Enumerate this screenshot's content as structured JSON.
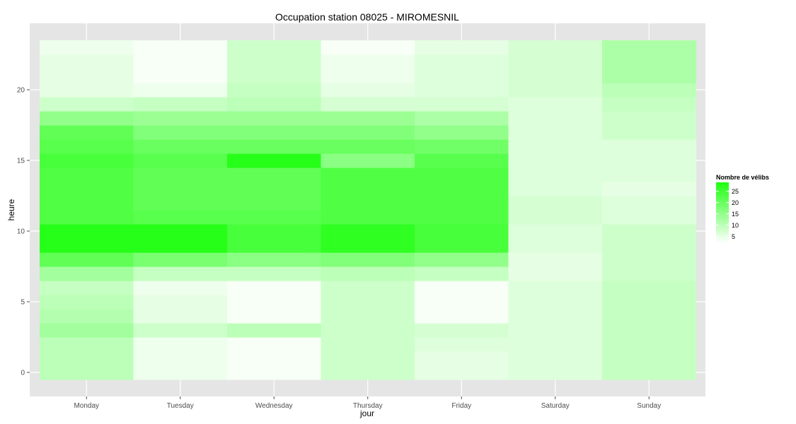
{
  "chart_data": {
    "type": "heatmap",
    "title": "Occupation station 08025 - MIROMESNIL",
    "xlabel": "jour",
    "ylabel": "heure",
    "categories": [
      "Monday",
      "Tuesday",
      "Wednesday",
      "Thursday",
      "Friday",
      "Saturday",
      "Sunday"
    ],
    "hours": [
      0,
      1,
      2,
      3,
      4,
      5,
      6,
      7,
      8,
      9,
      10,
      11,
      12,
      13,
      14,
      15,
      16,
      17,
      18,
      19,
      20,
      21,
      22,
      23
    ],
    "y_ticks": [
      0,
      5,
      10,
      15,
      20
    ],
    "ylim": [
      -0.5,
      23.5
    ],
    "values": [
      [
        10,
        4,
        3,
        8,
        5,
        6,
        9
      ],
      [
        10,
        4,
        3,
        8,
        5,
        6,
        9
      ],
      [
        10,
        4,
        3,
        8,
        6,
        6,
        9
      ],
      [
        13,
        8,
        10,
        8,
        7,
        6,
        9
      ],
      [
        11,
        5,
        3,
        8,
        3,
        6,
        9
      ],
      [
        10,
        5,
        3,
        8,
        3,
        6,
        9
      ],
      [
        9,
        4,
        3,
        8,
        3,
        6,
        9
      ],
      [
        13,
        9,
        9,
        10,
        9,
        5,
        8
      ],
      [
        21,
        18,
        16,
        17,
        15,
        5,
        8
      ],
      [
        28,
        28,
        24,
        27,
        24,
        6,
        8
      ],
      [
        28,
        28,
        24,
        27,
        24,
        6,
        8
      ],
      [
        23,
        22,
        22,
        23,
        23,
        7,
        6
      ],
      [
        23,
        21,
        21,
        23,
        23,
        7,
        6
      ],
      [
        23,
        21,
        21,
        23,
        23,
        6,
        5
      ],
      [
        23,
        21,
        21,
        23,
        23,
        6,
        6
      ],
      [
        24,
        22,
        28,
        16,
        22,
        6,
        6
      ],
      [
        22,
        20,
        20,
        20,
        19,
        6,
        6
      ],
      [
        21,
        17,
        17,
        17,
        15,
        6,
        8
      ],
      [
        15,
        14,
        14,
        14,
        12,
        6,
        8
      ],
      [
        8,
        9,
        10,
        7,
        7,
        6,
        9
      ],
      [
        5,
        4,
        9,
        5,
        6,
        7,
        10
      ],
      [
        5,
        3,
        8,
        4,
        6,
        7,
        12
      ],
      [
        5,
        3,
        8,
        4,
        6,
        7,
        12
      ],
      [
        4,
        3,
        8,
        3,
        5,
        7,
        12
      ]
    ],
    "color_low": "#ffffff",
    "color_high": "#1eff0f",
    "color_domain": [
      2,
      29
    ],
    "panel_background": "#e5e5e5",
    "grid_color": "#ffffff",
    "grid": true,
    "legend": {
      "title": "Nombre de vélibs",
      "breaks": [
        25,
        20,
        15,
        10,
        5
      ],
      "placement": "right"
    }
  }
}
